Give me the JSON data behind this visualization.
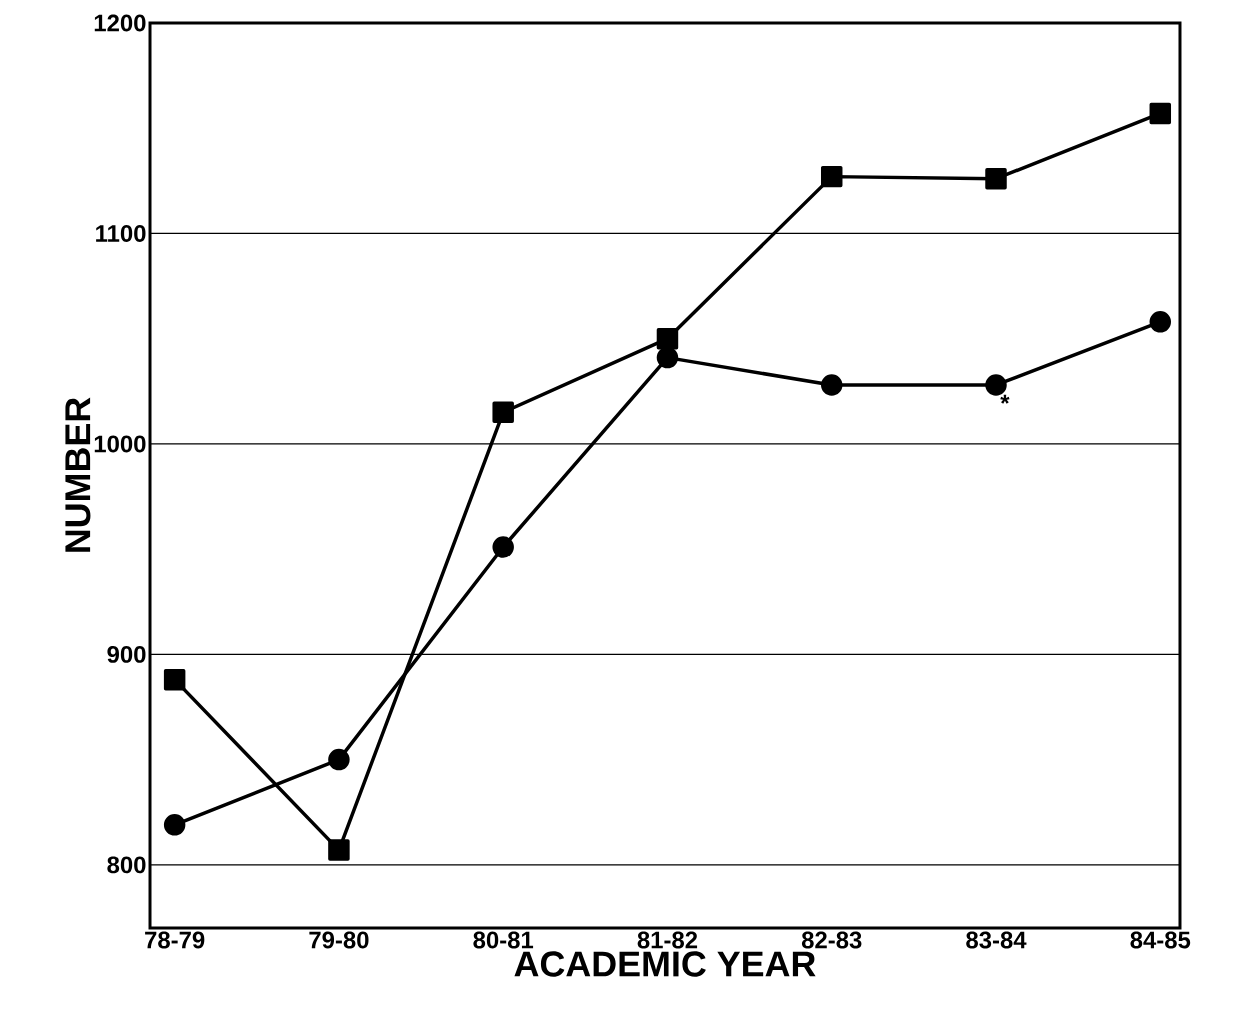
{
  "chart_data": {
    "type": "line",
    "xlabel": "ACADEMIC YEAR",
    "ylabel": "NUMBER",
    "categories": [
      "78-79",
      "79-80",
      "80-81",
      "81-82",
      "82-83",
      "83-84",
      "84-85"
    ],
    "series": [
      {
        "color": "#000000",
        "marker": "square",
        "values": [
          888,
          807,
          1015,
          1050,
          1127,
          1126,
          1157
        ]
      },
      {
        "color": "#000000",
        "marker": "circle",
        "values": [
          819,
          850,
          951,
          1041,
          1028,
          1028,
          1058
        ]
      }
    ],
    "ylim": [
      770,
      1200
    ],
    "yticks": [
      800,
      900,
      1000,
      1100,
      1200
    ],
    "grid": "y",
    "line_style": "solid",
    "annotations": [
      "*"
    ]
  }
}
